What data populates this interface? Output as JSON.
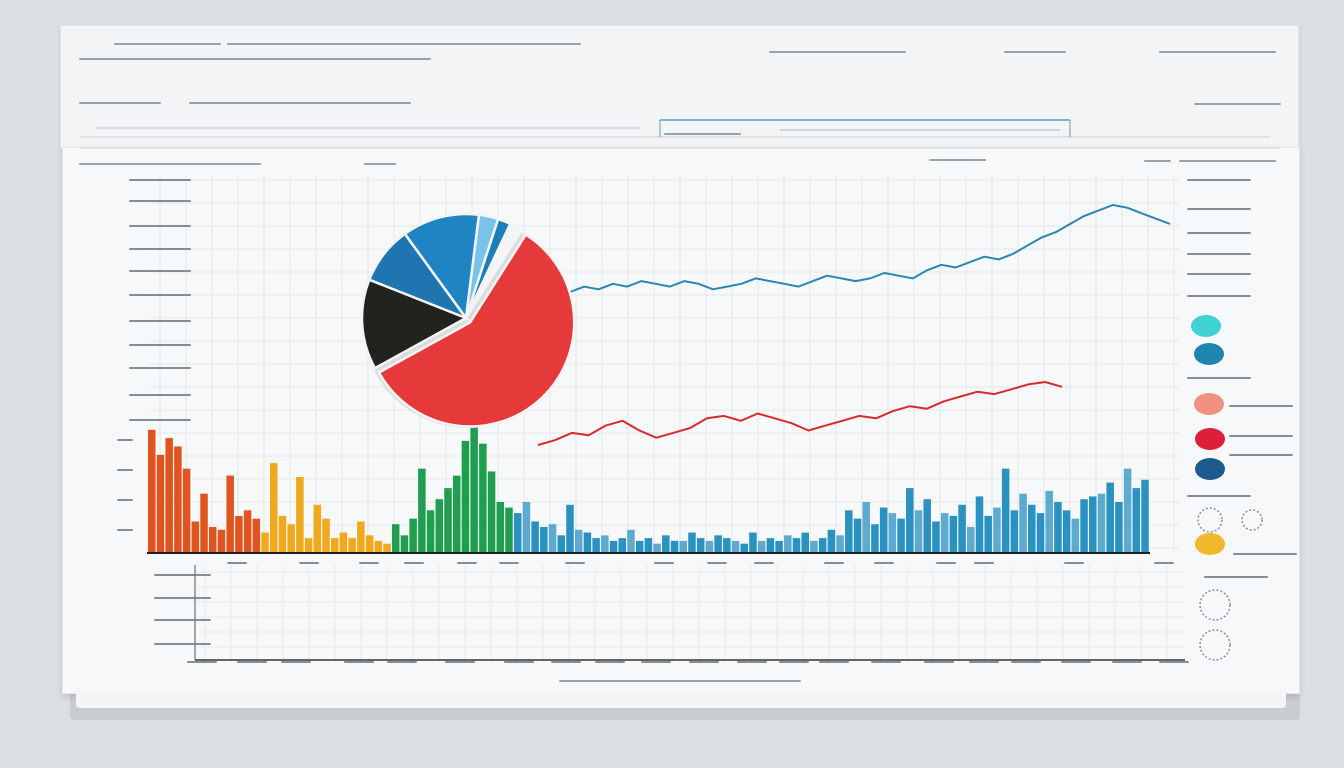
{
  "chart_data": [
    {
      "type": "line",
      "series": [
        {
          "values": [
            68,
            70,
            69,
            71,
            70,
            72,
            71,
            70,
            72,
            71,
            69,
            70,
            71,
            73,
            72,
            71,
            70,
            72,
            74,
            73,
            72,
            73,
            75,
            74,
            73,
            76,
            78,
            77,
            79,
            81,
            80,
            82,
            85,
            88,
            90,
            93,
            96,
            98,
            100,
            99,
            97,
            95,
            93
          ],
          "color": "#2b86b6"
        },
        {
          "values": [
            30,
            32,
            35,
            34,
            38,
            40,
            36,
            33,
            35,
            37,
            41,
            42,
            40,
            43,
            41,
            39,
            36,
            38,
            40,
            42,
            41,
            44,
            46,
            45,
            48,
            50,
            52,
            51,
            53,
            55,
            56,
            54
          ],
          "color": "#d92b2b"
        }
      ]
    },
    {
      "type": "bar",
      "values": [
        88,
        70,
        82,
        76,
        60,
        22,
        42,
        18,
        16,
        55,
        26,
        30,
        24,
        14,
        64,
        26,
        20,
        54,
        10,
        34,
        24,
        10,
        14,
        10,
        22,
        12,
        8,
        6,
        20,
        12,
        24,
        60,
        30,
        38,
        46,
        55,
        80,
        90,
        78,
        58,
        36,
        32,
        28,
        36,
        22,
        18,
        20,
        12,
        34,
        16,
        14,
        10,
        12,
        8,
        10,
        16,
        8,
        10,
        6,
        12,
        8,
        8,
        14,
        10,
        8,
        12,
        10,
        8,
        6,
        14,
        8,
        10,
        8,
        12,
        10,
        14,
        8,
        10,
        16,
        12,
        30,
        24,
        36,
        20,
        32,
        28,
        24,
        46,
        30,
        38,
        22,
        28,
        26,
        34,
        18,
        40,
        26,
        32,
        60,
        30,
        42,
        34,
        28,
        44,
        36,
        30,
        24,
        38,
        40,
        42,
        50,
        36,
        60,
        46,
        52
      ],
      "colors": [
        "#e0541f",
        "#f0a81c",
        "#1f9e4f",
        "#2a92c0"
      ]
    },
    {
      "type": "pie",
      "values": [
        58,
        14,
        9,
        12,
        3,
        2,
        2
      ],
      "colors": [
        "#e63a3a",
        "#22221f",
        "#1e75b0",
        "#1e85c2",
        "#78c3e8",
        "#1c7eb8",
        "#f4f4f4"
      ]
    }
  ],
  "legend_swatches": [
    "#3fd2d4",
    "#1e86ae",
    "#f09080",
    "#de1f3a",
    "#1d5a8e",
    "#f0b82a"
  ]
}
